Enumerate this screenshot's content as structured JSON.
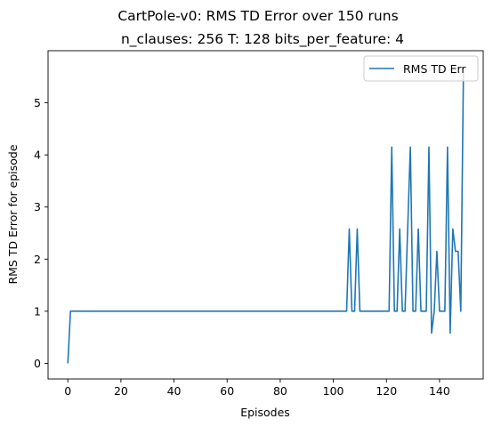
{
  "chart_data": {
    "type": "line",
    "suptitle": "CartPole-v0: RMS TD Error over 150 runs",
    "title": "n_clauses: 256 T: 128 bits_per_feature: 4",
    "xlabel": "Episodes",
    "ylabel": "RMS TD Error for episode",
    "xlim": [
      -7.45,
      156.45
    ],
    "ylim": [
      -0.3,
      6.0
    ],
    "xticks": [
      0,
      20,
      40,
      60,
      80,
      100,
      120,
      140
    ],
    "yticks": [
      0,
      1,
      2,
      3,
      4,
      5
    ],
    "grid": false,
    "legend": "upper right",
    "colors": {
      "line": "#1f77b4",
      "axes": "#000000",
      "legend_border": "#cccccc"
    },
    "series": [
      {
        "name": "RMS TD Err",
        "x": [
          0,
          1,
          2,
          3,
          4,
          5,
          6,
          7,
          8,
          9,
          10,
          11,
          12,
          13,
          14,
          15,
          16,
          17,
          18,
          19,
          20,
          21,
          22,
          23,
          24,
          25,
          26,
          27,
          28,
          29,
          30,
          31,
          32,
          33,
          34,
          35,
          36,
          37,
          38,
          39,
          40,
          41,
          42,
          43,
          44,
          45,
          46,
          47,
          48,
          49,
          50,
          51,
          52,
          53,
          54,
          55,
          56,
          57,
          58,
          59,
          60,
          61,
          62,
          63,
          64,
          65,
          66,
          67,
          68,
          69,
          70,
          71,
          72,
          73,
          74,
          75,
          76,
          77,
          78,
          79,
          80,
          81,
          82,
          83,
          84,
          85,
          86,
          87,
          88,
          89,
          90,
          91,
          92,
          93,
          94,
          95,
          96,
          97,
          98,
          99,
          100,
          101,
          102,
          103,
          104,
          105,
          106,
          107,
          108,
          109,
          110,
          111,
          112,
          113,
          114,
          115,
          116,
          117,
          118,
          119,
          120,
          121,
          122,
          123,
          124,
          125,
          126,
          127,
          128,
          129,
          130,
          131,
          132,
          133,
          134,
          135,
          136,
          137,
          138,
          139,
          140,
          141,
          142,
          143,
          144,
          145,
          146,
          147,
          148,
          149
        ],
        "values": [
          0,
          1,
          1,
          1,
          1,
          1,
          1,
          1,
          1,
          1,
          1,
          1,
          1,
          1,
          1,
          1,
          1,
          1,
          1,
          1,
          1,
          1,
          1,
          1,
          1,
          1,
          1,
          1,
          1,
          1,
          1,
          1,
          1,
          1,
          1,
          1,
          1,
          1,
          1,
          1,
          1,
          1,
          1,
          1,
          1,
          1,
          1,
          1,
          1,
          1,
          1,
          1,
          1,
          1,
          1,
          1,
          1,
          1,
          1,
          1,
          1,
          1,
          1,
          1,
          1,
          1,
          1,
          1,
          1,
          1,
          1,
          1,
          1,
          1,
          1,
          1,
          1,
          1,
          1,
          1,
          1,
          1,
          1,
          1,
          1,
          1,
          1,
          1,
          1,
          1,
          1,
          1,
          1,
          1,
          1,
          1,
          1,
          1,
          1,
          1,
          1,
          1,
          1,
          1,
          1,
          1,
          2.58,
          1,
          1,
          2.58,
          1,
          1,
          1,
          1,
          1,
          1,
          1,
          1,
          1,
          1,
          1,
          1,
          4.15,
          1,
          1,
          2.58,
          1,
          1,
          2.58,
          4.15,
          1,
          1,
          2.58,
          1,
          1,
          1,
          4.15,
          0.58,
          1,
          2.15,
          1,
          1,
          1,
          4.15,
          0.58,
          2.58,
          2.15,
          2.15,
          1,
          5.58
        ]
      }
    ]
  }
}
